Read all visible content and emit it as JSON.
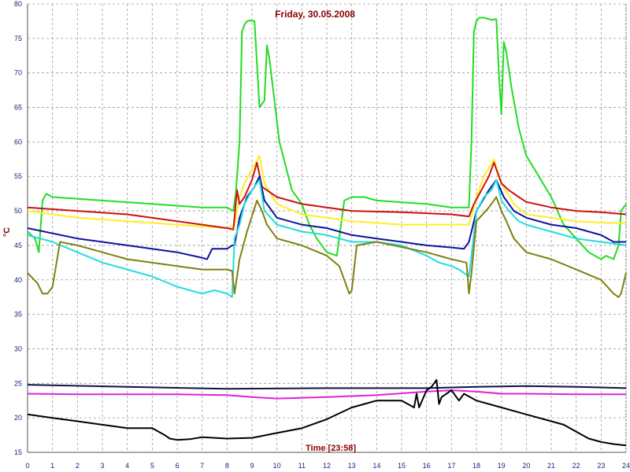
{
  "chart_data": {
    "type": "line",
    "title": "Friday, 30.05.2008",
    "ylabel": "°C",
    "time_label": "Time [23:58]",
    "xlim": [
      0,
      24
    ],
    "ylim": [
      15,
      80
    ],
    "x_ticks": [
      "0",
      "1",
      "2",
      "3",
      "4",
      "5",
      "6",
      "7",
      "8",
      "9",
      "10",
      "11",
      "12",
      "13",
      "14",
      "15",
      "16",
      "17",
      "18",
      "19",
      "20",
      "21",
      "22",
      "23",
      "24"
    ],
    "y_ticks": [
      "15",
      "20",
      "25",
      "30",
      "35",
      "40",
      "45",
      "50",
      "55",
      "60",
      "65",
      "70",
      "75",
      "80"
    ],
    "grid": true,
    "series": [
      {
        "color": "#22dd22",
        "x": [
          0,
          0.3,
          0.45,
          0.6,
          0.75,
          1,
          3,
          5,
          7,
          8,
          8.25,
          8.35,
          8.5,
          8.6,
          8.7,
          8.8,
          8.9,
          9.1,
          9.3,
          9.5,
          9.6,
          9.7,
          9.9,
          10.1,
          10.6,
          11,
          11.3,
          11.6,
          12,
          12.4,
          12.7,
          13,
          13.5,
          14,
          16,
          17,
          17.5,
          17.7,
          17.8,
          17.9,
          18,
          18.1,
          18.3,
          18.6,
          18.8,
          18.9,
          19,
          19.1,
          19.2,
          19.4,
          19.7,
          20,
          20.5,
          21,
          21.5,
          22,
          22.5,
          23,
          23.2,
          23.5,
          23.7,
          23.8,
          24
        ],
        "values": [
          47,
          46,
          44,
          51.5,
          52.5,
          52,
          51.5,
          51,
          50.5,
          50.5,
          50,
          52.5,
          60,
          76,
          77,
          77.5,
          77.6,
          77.5,
          65,
          66,
          74,
          72,
          66,
          60,
          53,
          51,
          48,
          46,
          44,
          43.5,
          51.5,
          52,
          52,
          51.5,
          51,
          50.5,
          50.5,
          50.5,
          60,
          76,
          77.5,
          78,
          78,
          77.7,
          77.8,
          70,
          64,
          74.5,
          73,
          68,
          62,
          58,
          55,
          52,
          48,
          46,
          44,
          43,
          43.5,
          43,
          45,
          50,
          51
        ]
      },
      {
        "color": "#ffee22",
        "x": [
          0,
          2,
          4,
          6,
          8,
          8.3,
          8.5,
          8.7,
          9,
          9.3,
          9.5,
          10,
          11,
          12,
          13,
          15,
          17,
          17.7,
          18,
          18.3,
          18.7,
          19,
          19.5,
          20,
          21,
          22,
          23,
          24
        ],
        "values": [
          50,
          49,
          48.5,
          48,
          47.5,
          47.8,
          52,
          54,
          56,
          58,
          54,
          51,
          49.5,
          49,
          48.5,
          48,
          48,
          48,
          52,
          55,
          57.5,
          54,
          51,
          49.5,
          49,
          48.5,
          48.3,
          48.2
        ]
      },
      {
        "color": "#cc1111",
        "x": [
          0,
          2,
          4,
          6,
          8,
          8.25,
          8.4,
          8.5,
          8.7,
          9,
          9.2,
          9.4,
          9.6,
          10,
          11,
          12,
          13,
          15,
          17,
          17.7,
          17.9,
          18.2,
          18.5,
          18.7,
          19,
          19.3,
          19.7,
          20,
          21,
          22,
          23,
          24
        ],
        "values": [
          50.5,
          50,
          49.5,
          48.5,
          47.5,
          47.3,
          53,
          51,
          52,
          54.5,
          57,
          53.5,
          53,
          52,
          51,
          50.5,
          50,
          49.8,
          49.5,
          49.2,
          51,
          53,
          55,
          57,
          54,
          53,
          52,
          51.3,
          50.5,
          50,
          49.8,
          49.5
        ]
      },
      {
        "color": "#1010a0",
        "x": [
          0,
          2,
          4,
          6,
          7,
          7.2,
          7.4,
          8,
          8.2,
          8.3,
          8.5,
          8.8,
          9.1,
          9.3,
          9.5,
          10,
          11,
          12,
          13,
          14,
          15,
          16,
          17,
          17.5,
          17.7,
          18,
          18.5,
          18.8,
          19.1,
          19.5,
          20,
          21,
          22,
          23,
          23.5,
          24
        ],
        "values": [
          47.5,
          46,
          45,
          44,
          43.2,
          43,
          44.5,
          44.5,
          45,
          45,
          49,
          52,
          53.5,
          55,
          51.5,
          49,
          48,
          47.5,
          46.5,
          46,
          45.5,
          45,
          44.7,
          44.5,
          45.5,
          50,
          53,
          54.5,
          52,
          50,
          49,
          48,
          47.5,
          46.5,
          45.5,
          45.5
        ]
      },
      {
        "color": "#22dddd",
        "x": [
          0,
          1,
          2,
          3,
          4,
          5,
          6,
          7,
          7.5,
          8,
          8.2,
          8.3,
          8.5,
          8.7,
          9,
          9.3,
          9.5,
          10,
          11,
          12,
          13,
          14,
          15,
          16,
          16.5,
          17,
          17.3,
          17.5,
          17.7,
          17.8,
          18,
          18.3,
          18.6,
          18.8,
          19,
          19.3,
          19.7,
          20,
          21,
          22,
          23,
          24
        ],
        "values": [
          46.5,
          45.5,
          44,
          42.5,
          41.5,
          40.5,
          39,
          38,
          38.5,
          38,
          37.5,
          46,
          48,
          51,
          53,
          54.5,
          50,
          48,
          47,
          46.5,
          45.5,
          45.5,
          45,
          43.5,
          42.5,
          42,
          41.5,
          41,
          40.5,
          43.5,
          50,
          52,
          53,
          54.5,
          51.5,
          50,
          48.5,
          48,
          47,
          46,
          45.5,
          45
        ]
      },
      {
        "color": "#808010",
        "x": [
          0,
          0.4,
          0.6,
          0.8,
          1,
          1.3,
          2,
          4,
          6,
          7,
          8,
          8.2,
          8.3,
          8.5,
          8.8,
          9.2,
          9.4,
          9.6,
          10,
          11,
          12,
          12.5,
          12.7,
          12.9,
          13,
          13.2,
          14,
          16,
          17,
          17.6,
          17.7,
          17.8,
          18,
          18.5,
          18.8,
          19,
          19.2,
          19.5,
          20,
          21,
          22,
          23,
          23.5,
          23.7,
          23.8,
          24
        ],
        "values": [
          41,
          39.5,
          38,
          38,
          39,
          45.5,
          45,
          43,
          42,
          41.5,
          41.5,
          41.3,
          38,
          43,
          47,
          51.5,
          50,
          48,
          46,
          45,
          43.5,
          42,
          40,
          38,
          38.5,
          45,
          45.5,
          44,
          43,
          42.5,
          38,
          41,
          48.5,
          50.5,
          52,
          50,
          48.5,
          46,
          44,
          43,
          41.5,
          40,
          38,
          37.5,
          38,
          41
        ]
      },
      {
        "color": "#111144",
        "x": [
          0,
          4,
          8,
          12,
          16,
          18,
          20,
          22,
          24
        ],
        "values": [
          24.8,
          24.5,
          24.2,
          24.3,
          24.3,
          24.5,
          24.6,
          24.5,
          24.3
        ]
      },
      {
        "color": "#dd22dd",
        "x": [
          0,
          2,
          4,
          6,
          8,
          9,
          10,
          12,
          14,
          16,
          17,
          18,
          19,
          20,
          22,
          24
        ],
        "values": [
          23.5,
          23.4,
          23.4,
          23.4,
          23.3,
          23,
          22.8,
          23,
          23.3,
          23.8,
          24,
          23.8,
          23.5,
          23.5,
          23.4,
          23.4
        ]
      },
      {
        "color": "#000000",
        "x": [
          0,
          1,
          2,
          3,
          4,
          5,
          5.5,
          5.7,
          6,
          6.5,
          7,
          8,
          9,
          10,
          11,
          12,
          13,
          13.5,
          14,
          15,
          15.5,
          15.6,
          15.7,
          16,
          16.2,
          16.4,
          16.5,
          16.6,
          17,
          17.3,
          17.5,
          18,
          19,
          20,
          21,
          21.5,
          22,
          22.5,
          23,
          23.5,
          24
        ],
        "values": [
          20.5,
          20,
          19.5,
          19,
          18.5,
          18.5,
          17.5,
          17,
          16.8,
          16.9,
          17.2,
          17,
          17.1,
          17.8,
          18.5,
          19.8,
          21.5,
          22,
          22.5,
          22.5,
          21.5,
          23.5,
          21.5,
          24,
          24.5,
          25.5,
          22,
          23,
          24,
          22.5,
          23.5,
          22.5,
          21.5,
          20.5,
          19.5,
          19,
          18,
          17,
          16.5,
          16.2,
          16
        ]
      }
    ]
  }
}
